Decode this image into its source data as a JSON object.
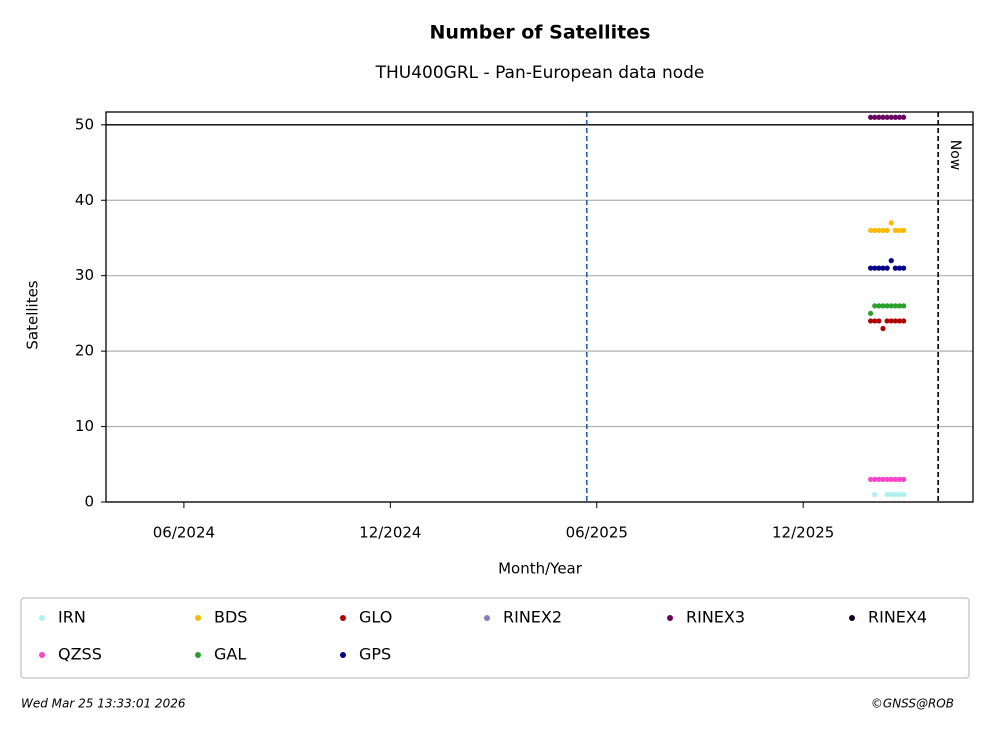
{
  "chart_data": {
    "type": "scatter",
    "title": "Number of Satellites",
    "subtitle": "THU400GRL - Pan-European data node",
    "xlabel": "Month/Year",
    "ylabel": "Satellites",
    "xlim": [
      2024.228,
      2026.328
    ],
    "xticks": [
      {
        "value": 2024.4167,
        "label": "06/2024"
      },
      {
        "value": 2024.9167,
        "label": "12/2024"
      },
      {
        "value": 2025.4167,
        "label": "06/2025"
      },
      {
        "value": 2025.9167,
        "label": "12/2025"
      }
    ],
    "ylim": [
      0,
      51.7
    ],
    "yticks": [
      0,
      10,
      20,
      30,
      40,
      50
    ],
    "grid": true,
    "hlines": [
      50
    ],
    "vlines": [
      {
        "x": 2025.3925,
        "color": "#1f5fa8"
      },
      {
        "x": 2026.2436,
        "color": "#000000",
        "label": "Now"
      }
    ],
    "x": [
      2026.08,
      2026.09,
      2026.1,
      2026.11,
      2026.12,
      2026.13,
      2026.14,
      2026.15,
      2026.16
    ],
    "series": [
      {
        "name": "IRN",
        "color": "#aef0f0",
        "values": [
          null,
          1,
          null,
          null,
          1,
          1,
          1,
          1,
          1
        ]
      },
      {
        "name": "BDS",
        "color": "#ffb900",
        "values": [
          36,
          36,
          36,
          36,
          36,
          37,
          36,
          36,
          36
        ]
      },
      {
        "name": "GLO",
        "color": "#b00000",
        "values": [
          24,
          24,
          24,
          23,
          24,
          24,
          24,
          24,
          24
        ]
      },
      {
        "name": "RINEX2",
        "color": "#8080c0",
        "values": [
          null,
          null,
          null,
          null,
          null,
          null,
          null,
          null,
          null
        ]
      },
      {
        "name": "RINEX3",
        "color": "#6b0060",
        "values": [
          51,
          51,
          51,
          51,
          51,
          51,
          51,
          51,
          51
        ]
      },
      {
        "name": "RINEX4",
        "color": "#1a0020",
        "values": [
          null,
          null,
          null,
          null,
          null,
          null,
          null,
          null,
          null
        ]
      },
      {
        "name": "QZSS",
        "color": "#ff44cc",
        "values": [
          3,
          3,
          3,
          3,
          3,
          3,
          3,
          3,
          3
        ]
      },
      {
        "name": "GAL",
        "color": "#2ca02c",
        "values": [
          25,
          26,
          26,
          26,
          26,
          26,
          26,
          26,
          26
        ]
      },
      {
        "name": "GPS",
        "color": "#00008b",
        "values": [
          31,
          31,
          31,
          31,
          31,
          32,
          31,
          31,
          31
        ]
      }
    ],
    "legend": "bottom",
    "timestamp": "Wed Mar 25 13:33:01 2026",
    "credit": "©GNSS@ROB"
  }
}
